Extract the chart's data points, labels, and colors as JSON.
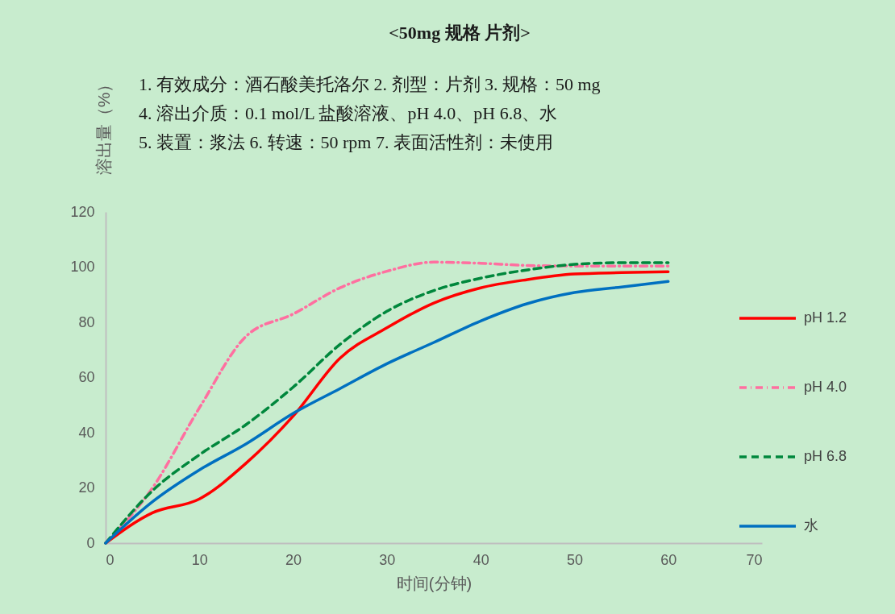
{
  "chart_data": {
    "type": "line",
    "title": "<50mg 规格  片剂>",
    "annotations": [
      "1. 有效成分：酒石酸美托洛尔   2. 剂型：片剂   3. 规格：50 mg",
      "4. 溶出介质：0.1 mol/L 盐酸溶液、pH 4.0、pH 6.8、水",
      "5. 装置：浆法   6. 转速：50 rpm  7. 表面活性剂：未使用"
    ],
    "xlabel": "时间(分钟)",
    "ylabel": "溶出量（%）",
    "x": [
      0,
      5,
      10,
      15,
      20,
      25,
      30,
      35,
      40,
      45,
      50,
      55,
      60
    ],
    "xlim": [
      0,
      70
    ],
    "xticks": [
      0,
      10,
      20,
      30,
      40,
      50,
      60,
      70
    ],
    "ylim": [
      0,
      120
    ],
    "yticks": [
      0,
      20,
      40,
      60,
      80,
      100,
      120
    ],
    "legend": "right",
    "series": [
      {
        "name": "pH 1.2",
        "color": "#ff0000",
        "line_style": "solid",
        "values": [
          0,
          11,
          16,
          29,
          46,
          67,
          78,
          87,
          92.5,
          95.5,
          97.5,
          98,
          98.3
        ]
      },
      {
        "name": "pH 4.0",
        "color": "#ff6fa0",
        "line_style": "dashdot",
        "values": [
          0,
          20,
          49,
          75,
          83,
          92.5,
          98.5,
          101.8,
          101.4,
          100.6,
          100.4,
          100.4,
          100.4
        ]
      },
      {
        "name": "pH 6.8",
        "color": "#00873c",
        "line_style": "dashed",
        "values": [
          0,
          19,
          32,
          43,
          56.5,
          72,
          84,
          91.5,
          96,
          99,
          101,
          101.6,
          101.6
        ]
      },
      {
        "name": "水",
        "color": "#0070c0",
        "line_style": "solid",
        "values": [
          0,
          15,
          26.5,
          36,
          47,
          56,
          65,
          72.7,
          80.5,
          86.8,
          90.8,
          92.8,
          94.8
        ]
      }
    ]
  }
}
